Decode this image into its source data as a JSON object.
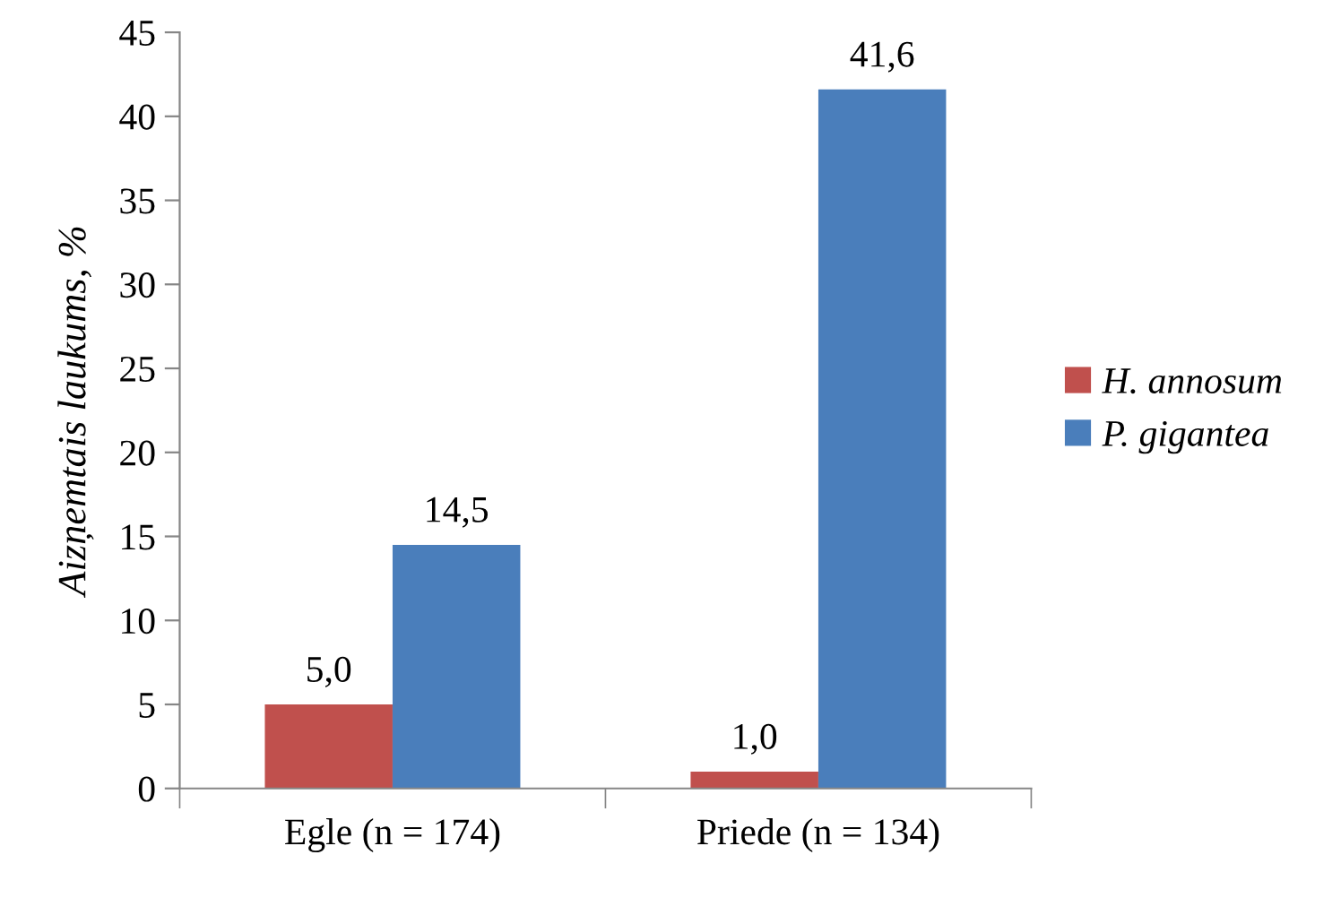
{
  "chart_data": {
    "type": "bar",
    "ylabel": "Aizņemtais laukums, %",
    "categories": [
      "Egle (n = 174)",
      "Priede (n = 134)"
    ],
    "series": [
      {
        "name": "H. annosum",
        "color": "#c0504d",
        "values": [
          5.0,
          1.0
        ],
        "value_labels": [
          "5,0",
          "1,0"
        ]
      },
      {
        "name": "P. gigantea",
        "color": "#4a7ebb",
        "values": [
          14.5,
          41.6
        ],
        "value_labels": [
          "14,5",
          "41,6"
        ]
      }
    ],
    "ylim": [
      0,
      45
    ],
    "yticks": [
      0,
      5,
      10,
      15,
      20,
      25,
      30,
      35,
      40,
      45
    ],
    "grid": false,
    "legend": "right"
  }
}
